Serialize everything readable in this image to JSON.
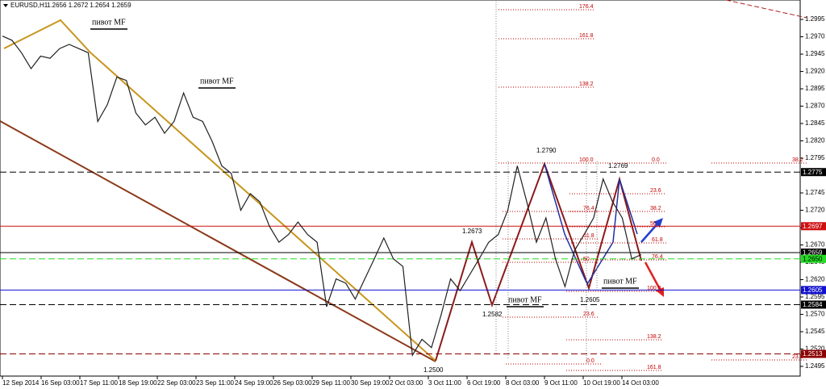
{
  "chart_data": {
    "type": "line",
    "title": "EURUSD,H1",
    "subtitle": "1.2656 1.2672 1.2654 1.2659",
    "series": [
      {
        "name": "EURUSD",
        "color": "#202020",
        "values": [
          1.2971,
          1.2965,
          1.2947,
          1.2924,
          1.2942,
          1.2939,
          1.2953,
          1.2959,
          1.2953,
          1.2947,
          1.2848,
          1.2872,
          1.2912,
          1.2907,
          1.286,
          1.2843,
          1.2854,
          1.2831,
          1.2848,
          1.2889,
          1.2854,
          1.2848,
          1.2819,
          1.2784,
          1.2773,
          1.272,
          1.2744,
          1.2732,
          1.2697,
          1.2674,
          1.2685,
          1.2703,
          1.2685,
          1.2674,
          1.2581,
          1.2621,
          1.2615,
          1.2592,
          1.2621,
          1.265,
          1.268,
          1.265,
          1.2639,
          1.2511,
          1.2534,
          1.2522,
          1.2569,
          1.2621,
          1.2604,
          1.2627,
          1.265,
          1.2674,
          1.2685,
          1.272,
          1.2784,
          1.2732,
          1.2674,
          1.2709,
          1.265,
          1.261,
          1.2662,
          1.2685,
          1.2709,
          1.2765,
          1.2732,
          1.2709,
          1.265,
          1.2656
        ]
      }
    ],
    "ylim": [
      1.2481,
      1.3023
    ],
    "yticks": [
      1.2995,
      {
        "value": 1.297,
        "label": "1.2970"
      },
      1.2945,
      {
        "value": 1.292,
        "label": "1.2920"
      },
      1.2895,
      {
        "value": 1.287,
        "label": "1.2870"
      },
      1.2845,
      {
        "value": 1.282,
        "label": "1.2820"
      },
      1.2795,
      1.2745,
      {
        "value": 1.272,
        "label": "1.2720"
      },
      1.2695,
      {
        "value": 1.267,
        "label": "1.2670"
      },
      1.2645,
      {
        "value": 1.262,
        "label": "1.2620"
      },
      1.2595,
      {
        "value": 1.257,
        "label": "1.2570"
      },
      1.2545,
      {
        "value": 1.252,
        "label": "1.2520"
      },
      1.2495
    ],
    "xticks": [
      "12 Sep 2014",
      "16 Sep 03:00",
      "17 Sep 11:00",
      "18 Sep 19:00",
      "22 Sep 03:00",
      "23 Sep 11:00",
      "24 Sep 19:00",
      "26 Sep 03:00",
      "29 Sep 11:00",
      "30 Sep 19:00",
      "2 Oct 03:00",
      "3 Oct 11:00",
      "6 Oct 19:00",
      "8 Oct 03:00",
      "9 Oct 11:00",
      "10 Oct 19:00",
      "14 Oct 03:00"
    ],
    "grid": false,
    "levels": [
      {
        "value": 1.2775,
        "label": "1.2775",
        "color": "#000000",
        "dash": true
      },
      {
        "value": 1.2697,
        "label": "1.2697",
        "color": "#d01010",
        "dash": false
      },
      {
        "value": 1.2659,
        "label": "1.2659",
        "color": "#000000",
        "dash": false
      },
      {
        "value": 1.265,
        "label": "1.2650",
        "color": "#22dd22",
        "dash": true
      },
      {
        "value": 1.2605,
        "label": "1.2605",
        "color": "#1010d0",
        "dash": false
      },
      {
        "value": 1.2584,
        "label": "1.2584",
        "color": "#000000",
        "dash": true
      },
      {
        "value": 1.2513,
        "label": "1.2513",
        "color": "#8b0000",
        "dash": true
      }
    ],
    "price_labels": [
      {
        "value": 1.279,
        "label": "1.2790"
      },
      {
        "value": 1.2769,
        "label": "1.2769"
      },
      {
        "value": 1.2673,
        "label": "1.2673"
      },
      {
        "value": 1.2582,
        "label": "1.2582"
      },
      {
        "value": 1.2605,
        "label": "1.2605"
      },
      {
        "value": 1.25,
        "label": "1.2500"
      }
    ],
    "pivot_labels": [
      "пивот MF",
      "пивот MF",
      "пивот MF",
      "пивот MF"
    ],
    "fibo_labels": [
      "176.4",
      "161.8",
      "138.2",
      "100.0",
      "0.0",
      "38.2",
      "23.6",
      "38.2",
      "76.4",
      "50",
      "61.8",
      "61.8",
      "50",
      "76.4",
      "100.0",
      "23.6",
      "138.2",
      "0.0",
      "23.6",
      "161.8"
    ]
  }
}
